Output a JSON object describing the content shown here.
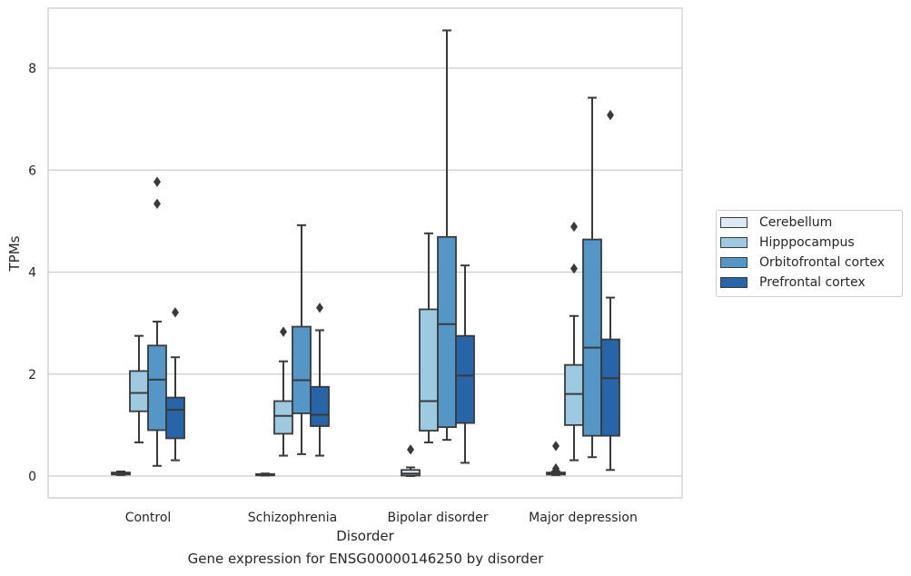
{
  "chart_data": {
    "type": "box",
    "title": "",
    "caption": "Gene expression for ENSG00000146250 by disorder",
    "xlabel": "Disorder",
    "ylabel": "TPMs",
    "ylim": [
      -0.42,
      9.25
    ],
    "yticks": [
      0,
      2,
      4,
      6,
      8
    ],
    "ytick_labels": [
      "0",
      "2",
      "4",
      "6",
      "8"
    ],
    "grid": "horizontal",
    "legend_position": "right",
    "categories": [
      "Control",
      "Schizophrenia",
      "Bipolar disorder",
      "Major depression"
    ],
    "series": [
      {
        "name": "Cerebellum",
        "color": "#dbe9f6",
        "boxes": [
          {
            "whisker_low": 0.02,
            "q1": 0.03,
            "median": 0.05,
            "q3": 0.07,
            "whisker_high": 0.09,
            "outliers": []
          },
          {
            "whisker_low": 0.01,
            "q1": 0.02,
            "median": 0.03,
            "q3": 0.04,
            "whisker_high": 0.05,
            "outliers": []
          },
          {
            "whisker_low": 0.0,
            "q1": 0.01,
            "median": 0.05,
            "q3": 0.12,
            "whisker_high": 0.17,
            "outliers": [
              0.52
            ]
          },
          {
            "whisker_low": 0.02,
            "q1": 0.03,
            "median": 0.05,
            "q3": 0.07,
            "whisker_high": 0.09,
            "outliers": [
              0.59,
              0.15,
              0.12
            ]
          }
        ]
      },
      {
        "name": "Hipppocampus",
        "color": "#9dc9e1",
        "boxes": [
          {
            "whisker_low": 0.66,
            "q1": 1.27,
            "median": 1.63,
            "q3": 2.06,
            "whisker_high": 2.75,
            "outliers": []
          },
          {
            "whisker_low": 0.4,
            "q1": 0.83,
            "median": 1.18,
            "q3": 1.47,
            "whisker_high": 2.25,
            "outliers": [
              2.83
            ]
          },
          {
            "whisker_low": 0.66,
            "q1": 0.89,
            "median": 1.47,
            "q3": 3.27,
            "whisker_high": 4.76,
            "outliers": []
          },
          {
            "whisker_low": 0.31,
            "q1": 1.0,
            "median": 1.61,
            "q3": 2.18,
            "whisker_high": 3.14,
            "outliers": [
              4.07,
              4.89
            ]
          }
        ]
      },
      {
        "name": "Orbitofrontal cortex",
        "color": "#5497c6",
        "boxes": [
          {
            "whisker_low": 0.2,
            "q1": 0.9,
            "median": 1.89,
            "q3": 2.56,
            "whisker_high": 3.03,
            "outliers": [
              5.34,
              5.77
            ]
          },
          {
            "whisker_low": 0.43,
            "q1": 1.23,
            "median": 1.88,
            "q3": 2.93,
            "whisker_high": 4.92,
            "outliers": []
          },
          {
            "whisker_low": 0.71,
            "q1": 0.96,
            "median": 2.98,
            "q3": 4.69,
            "whisker_high": 8.74,
            "outliers": []
          },
          {
            "whisker_low": 0.37,
            "q1": 0.79,
            "median": 2.52,
            "q3": 4.64,
            "whisker_high": 7.42,
            "outliers": []
          }
        ]
      },
      {
        "name": "Prefrontal cortex",
        "color": "#2565a8",
        "boxes": [
          {
            "whisker_low": 0.31,
            "q1": 0.74,
            "median": 1.3,
            "q3": 1.54,
            "whisker_high": 2.33,
            "outliers": [
              3.21
            ]
          },
          {
            "whisker_low": 0.4,
            "q1": 0.98,
            "median": 1.2,
            "q3": 1.75,
            "whisker_high": 2.86,
            "outliers": [
              3.3
            ]
          },
          {
            "whisker_low": 0.26,
            "q1": 1.04,
            "median": 1.97,
            "q3": 2.75,
            "whisker_high": 4.13,
            "outliers": []
          },
          {
            "whisker_low": 0.12,
            "q1": 0.79,
            "median": 1.92,
            "q3": 2.68,
            "whisker_high": 3.5,
            "outliers": [
              7.08
            ]
          }
        ]
      }
    ]
  }
}
